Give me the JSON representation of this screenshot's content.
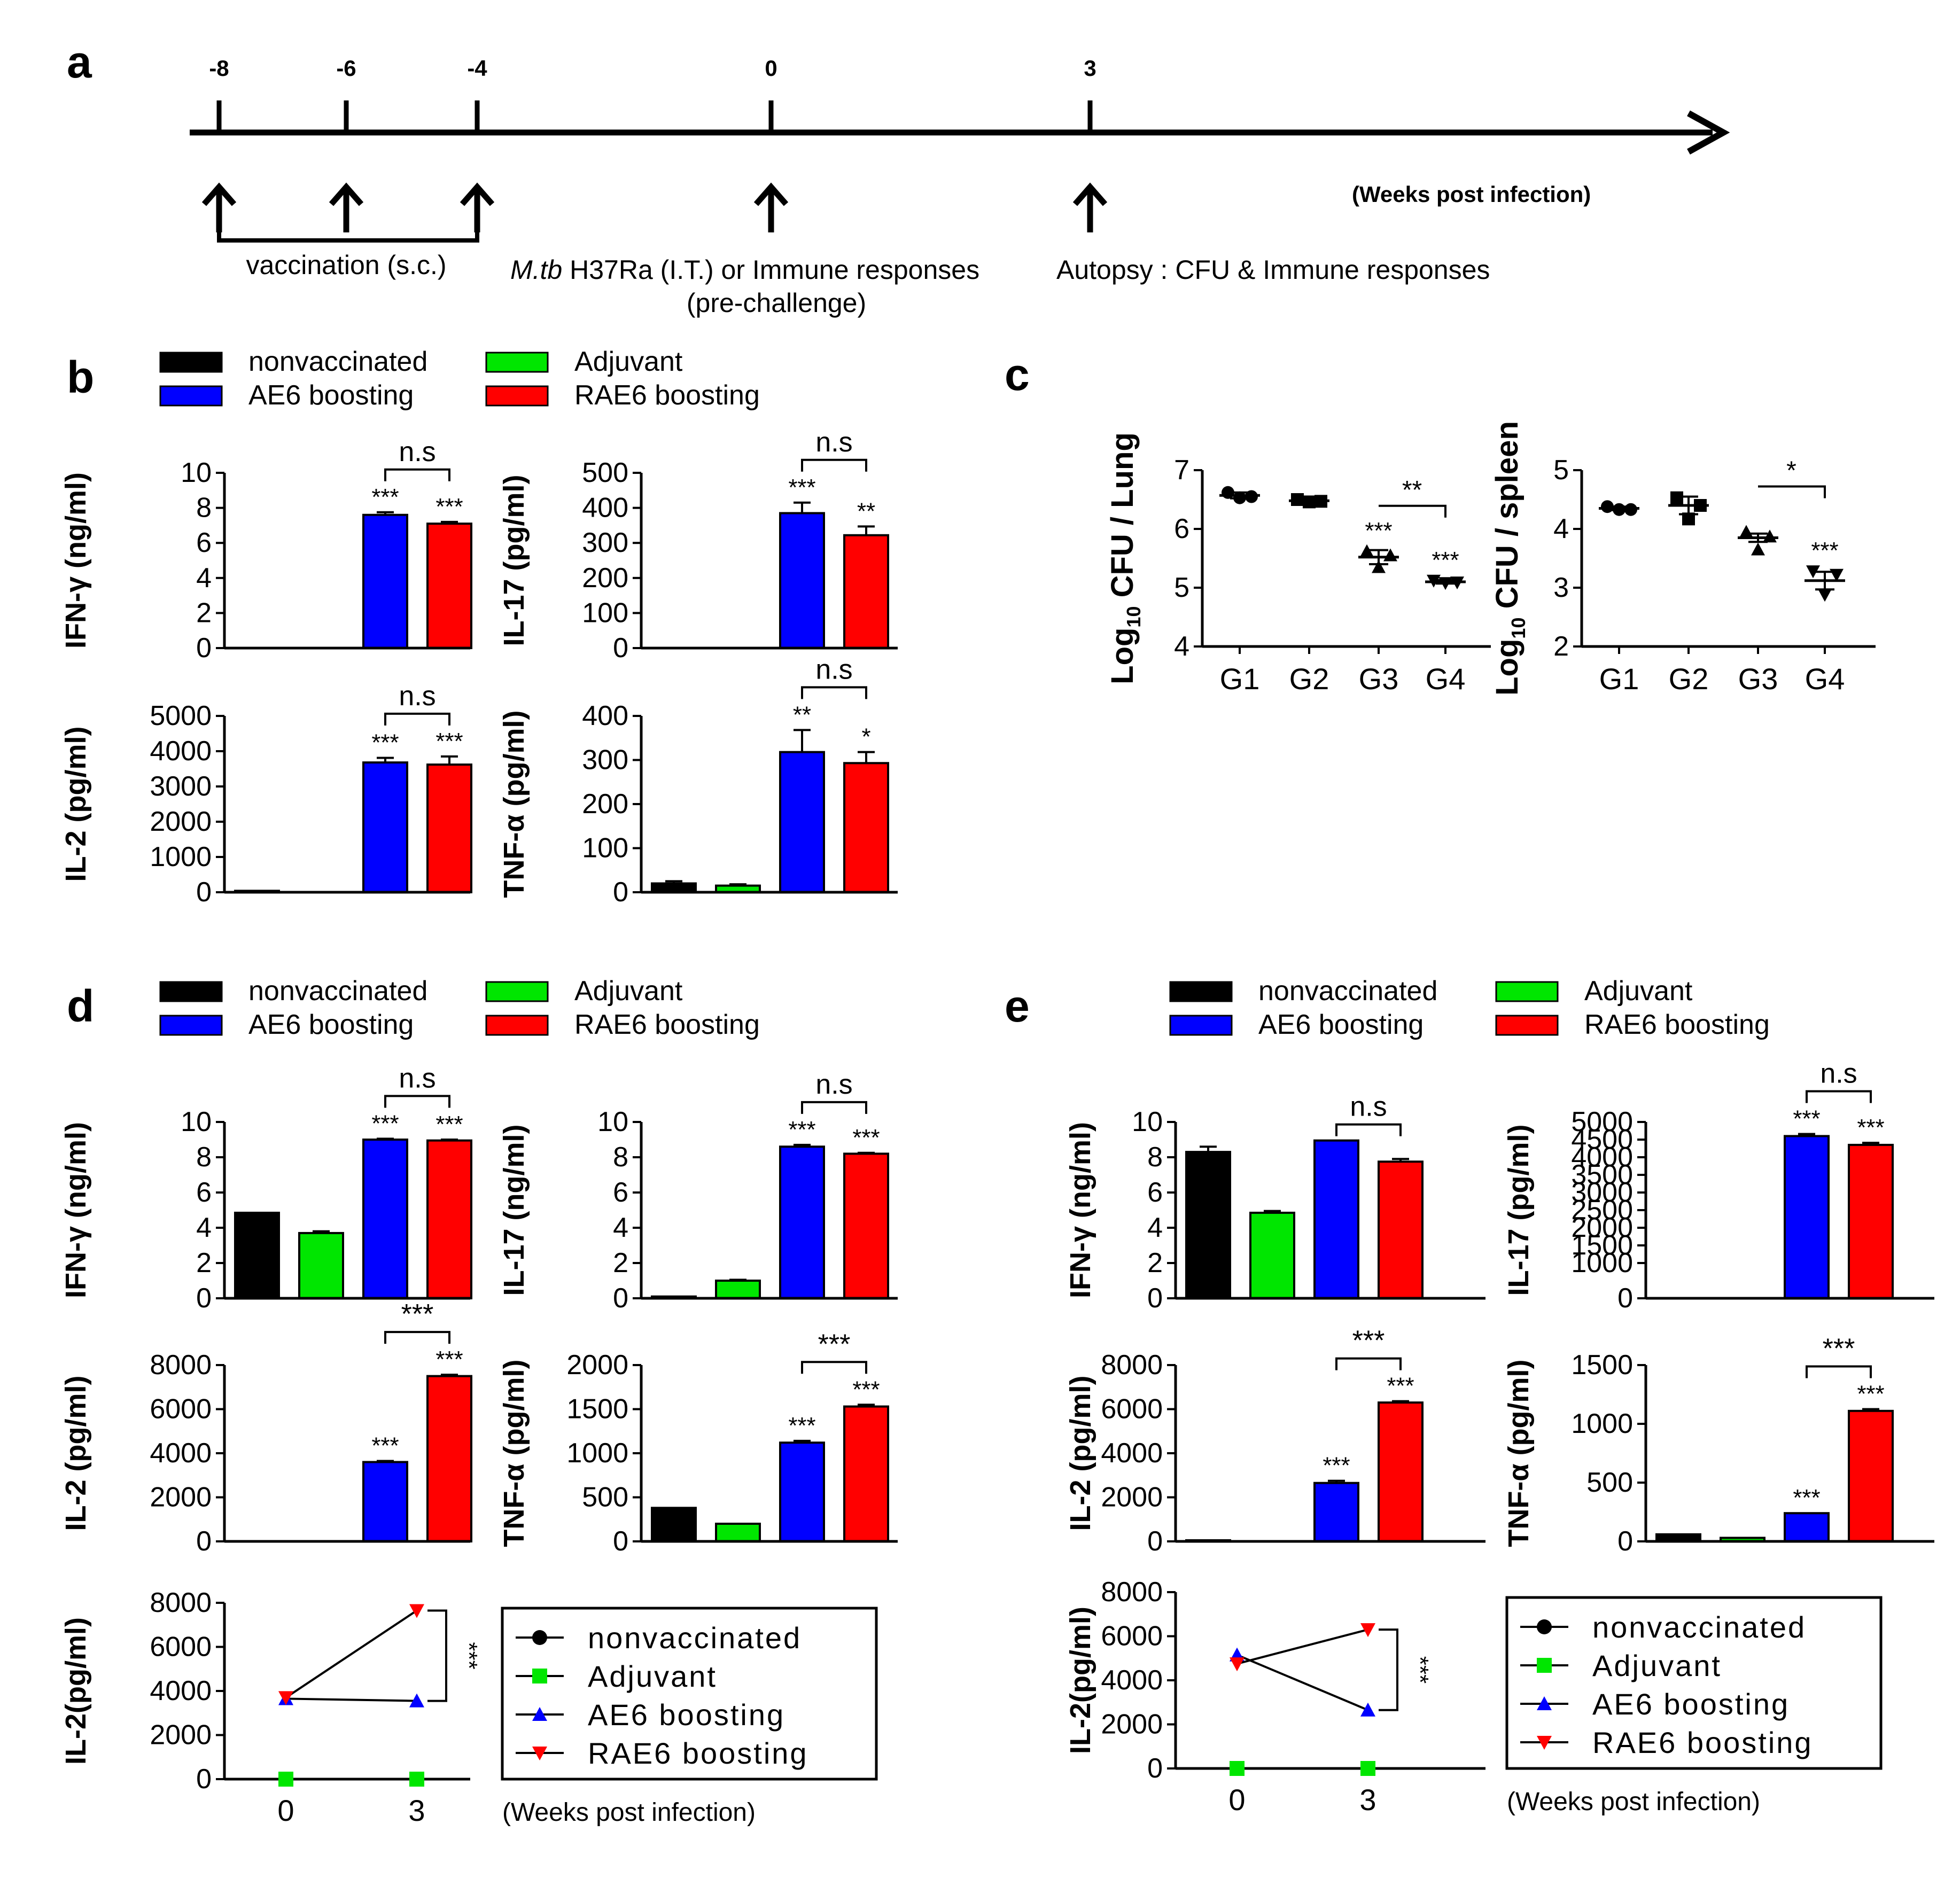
{
  "colors": {
    "nonvaccinated": "#000000",
    "adjuvant": "#00e600",
    "ae6": "#0000ff",
    "rae6": "#ff0000"
  },
  "legend_items": [
    "nonvaccinated",
    "Adjuvant",
    "AE6 boosting",
    "RAE6 boosting"
  ],
  "panel_a": {
    "label": "a",
    "ticks": [
      "-8",
      "-6",
      "-4",
      "0",
      "3"
    ],
    "unit": "(Weeks post infection)",
    "vaccination": "vaccination (s.c.)",
    "challenge_italic": "M.tb",
    "challenge_rest": " H37Ra (I.T.) or Immune responses",
    "pre_challenge": "(pre-challenge)",
    "autopsy": "Autopsy : CFU & Immune responses"
  },
  "chart_data": [
    {
      "id": "b1",
      "panel": "b",
      "type": "bar",
      "ylabel": "IFN-γ (ng/ml)",
      "categories": [
        "nonvaccinated",
        "Adjuvant",
        "AE6 boosting",
        "RAE6 boosting"
      ],
      "values": [
        0,
        0,
        7.6,
        7.1
      ],
      "errors": [
        0,
        0,
        0.15,
        0.1
      ],
      "ylim": [
        0,
        10
      ],
      "yticks": [
        "0",
        "2",
        "4",
        "6",
        "8",
        "10"
      ],
      "stars": [
        "",
        "",
        "***",
        "***"
      ],
      "bracket": {
        "from": 2,
        "to": 3,
        "label": "n.s"
      }
    },
    {
      "id": "b2",
      "panel": "b",
      "type": "bar",
      "ylabel": "IL-17 (pg/ml)",
      "categories": [
        "nonvaccinated",
        "Adjuvant",
        "AE6 boosting",
        "RAE6 boosting"
      ],
      "values": [
        0,
        0,
        385,
        322
      ],
      "errors": [
        0,
        0,
        30,
        25
      ],
      "ylim": [
        0,
        500
      ],
      "yticks": [
        "0",
        "100",
        "200",
        "300",
        "400",
        "500"
      ],
      "stars": [
        "",
        "",
        "***",
        "**"
      ],
      "bracket": {
        "from": 2,
        "to": 3,
        "label": "n.s"
      }
    },
    {
      "id": "b3",
      "panel": "b",
      "type": "bar",
      "ylabel": "IL-2 (pg/ml)",
      "categories": [
        "nonvaccinated",
        "Adjuvant",
        "AE6 boosting",
        "RAE6 boosting"
      ],
      "values": [
        40,
        0,
        3680,
        3620
      ],
      "errors": [
        0,
        0,
        130,
        230
      ],
      "ylim": [
        0,
        5000
      ],
      "yticks": [
        "0",
        "1000",
        "2000",
        "3000",
        "4000",
        "5000"
      ],
      "stars": [
        "",
        "",
        "***",
        "***"
      ],
      "bracket": {
        "from": 2,
        "to": 3,
        "label": "n.s"
      }
    },
    {
      "id": "b4",
      "panel": "b",
      "type": "bar",
      "ylabel": "TNF-α (pg/ml)",
      "categories": [
        "nonvaccinated",
        "Adjuvant",
        "AE6 boosting",
        "RAE6 boosting"
      ],
      "values": [
        20,
        15,
        318,
        293
      ],
      "errors": [
        5,
        3,
        50,
        25
      ],
      "ylim": [
        0,
        400
      ],
      "yticks": [
        "0",
        "100",
        "200",
        "300",
        "400"
      ],
      "stars": [
        "",
        "",
        "**",
        "*"
      ],
      "bracket": {
        "from": 2,
        "to": 3,
        "label": "n.s"
      }
    },
    {
      "id": "c1",
      "panel": "c",
      "type": "scatter",
      "ylabel": "Log10 CFU / Lung",
      "categories": [
        "G1",
        "G2",
        "G3",
        "G4"
      ],
      "means": [
        6.57,
        6.48,
        5.52,
        5.1
      ],
      "sem": [
        0.05,
        0.03,
        0.12,
        0.03
      ],
      "points": [
        [
          6.62,
          6.55,
          6.53
        ],
        [
          6.5,
          6.47,
          6.46
        ],
        [
          5.62,
          5.55,
          5.35
        ],
        [
          5.12,
          5.09,
          5.08
        ]
      ],
      "markers": [
        "circle",
        "square",
        "triangle-up",
        "triangle-down"
      ],
      "ylim": [
        4,
        7
      ],
      "yticks": [
        "4",
        "5",
        "6",
        "7"
      ],
      "stars": [
        "",
        "",
        "***",
        "***"
      ],
      "bracket": {
        "from": 2,
        "to": 3,
        "label": "**"
      }
    },
    {
      "id": "c2",
      "panel": "c",
      "type": "scatter",
      "ylabel": "Log10 CFU / spleen",
      "categories": [
        "G1",
        "G2",
        "G3",
        "G4"
      ],
      "means": [
        4.35,
        4.4,
        3.85,
        3.12
      ],
      "sem": [
        0.03,
        0.15,
        0.07,
        0.15
      ],
      "points": [
        [
          4.38,
          4.33,
          4.33
        ],
        [
          4.53,
          4.4,
          4.17
        ],
        [
          3.95,
          3.87,
          3.65
        ],
        [
          3.28,
          3.22,
          2.88
        ]
      ],
      "markers": [
        "circle",
        "square",
        "triangle-up",
        "triangle-down"
      ],
      "ylim": [
        2,
        5
      ],
      "yticks": [
        "2",
        "3",
        "4",
        "5"
      ],
      "stars": [
        "",
        "",
        "",
        "***"
      ],
      "bracket": {
        "from": 2,
        "to": 3,
        "label": "*"
      }
    },
    {
      "id": "d1",
      "panel": "d",
      "type": "bar",
      "ylabel": "IFN-γ (ng/ml)",
      "categories": [
        "nonvaccinated",
        "Adjuvant",
        "AE6 boosting",
        "RAE6 boosting"
      ],
      "values": [
        4.85,
        3.7,
        9.0,
        8.95
      ],
      "errors": [
        0,
        0.1,
        0.05,
        0.05
      ],
      "ylim": [
        0,
        10
      ],
      "yticks": [
        "0",
        "2",
        "4",
        "6",
        "8",
        "10"
      ],
      "stars": [
        "",
        "",
        "***",
        "***"
      ],
      "bracket": {
        "from": 2,
        "to": 3,
        "label": "n.s"
      }
    },
    {
      "id": "d2",
      "panel": "d",
      "type": "bar",
      "ylabel": "IL-17 (ng/ml)",
      "categories": [
        "nonvaccinated",
        "Adjuvant",
        "AE6 boosting",
        "RAE6 boosting"
      ],
      "values": [
        0.1,
        1.0,
        8.6,
        8.2
      ],
      "errors": [
        0,
        0.05,
        0.1,
        0.05
      ],
      "ylim": [
        0,
        10
      ],
      "yticks": [
        "0",
        "2",
        "4",
        "6",
        "8",
        "10"
      ],
      "stars": [
        "",
        "",
        "***",
        "***"
      ],
      "bracket": {
        "from": 2,
        "to": 3,
        "label": "n.s"
      }
    },
    {
      "id": "d3",
      "panel": "d",
      "type": "bar",
      "ylabel": "IL-2 (pg/ml)",
      "categories": [
        "nonvaccinated",
        "Adjuvant",
        "AE6 boosting",
        "RAE6 boosting"
      ],
      "values": [
        0,
        0,
        3600,
        7500
      ],
      "errors": [
        0,
        0,
        50,
        60
      ],
      "ylim": [
        0,
        8000
      ],
      "yticks": [
        "0",
        "2000",
        "4000",
        "6000",
        "8000"
      ],
      "stars": [
        "",
        "",
        "***",
        "***"
      ],
      "bracket": {
        "from": 2,
        "to": 3,
        "label": "***"
      }
    },
    {
      "id": "d4",
      "panel": "d",
      "type": "bar",
      "ylabel": "TNF-α (pg/ml)",
      "categories": [
        "nonvaccinated",
        "Adjuvant",
        "AE6 boosting",
        "RAE6 boosting"
      ],
      "values": [
        380,
        200,
        1120,
        1530
      ],
      "errors": [
        0,
        0,
        20,
        20
      ],
      "ylim": [
        0,
        2000
      ],
      "yticks": [
        "0",
        "500",
        "1000",
        "1500",
        "2000"
      ],
      "stars": [
        "",
        "",
        "***",
        "***"
      ],
      "bracket": {
        "from": 2,
        "to": 3,
        "label": "***"
      }
    },
    {
      "id": "d5",
      "panel": "d",
      "type": "line",
      "ylabel": "IL-2(pg/ml)",
      "x": [
        "0",
        "3"
      ],
      "series": [
        {
          "name": "nonvaccinated",
          "values": [
            0,
            0
          ]
        },
        {
          "name": "Adjuvant",
          "values": [
            0,
            0
          ]
        },
        {
          "name": "AE6 boosting",
          "values": [
            3650,
            3550
          ]
        },
        {
          "name": "RAE6 boosting",
          "values": [
            3700,
            7650
          ]
        }
      ],
      "ylim": [
        0,
        8000
      ],
      "yticks": [
        "0",
        "2000",
        "4000",
        "6000",
        "8000"
      ],
      "annotation": "***",
      "xunit": "(Weeks post infection)"
    },
    {
      "id": "e1",
      "panel": "e",
      "type": "bar",
      "ylabel": "IFN-γ (ng/ml)",
      "categories": [
        "nonvaccinated",
        "Adjuvant",
        "AE6 boosting",
        "RAE6 boosting"
      ],
      "values": [
        8.3,
        4.85,
        8.95,
        7.75
      ],
      "errors": [
        0.3,
        0.1,
        0,
        0.15
      ],
      "ylim": [
        0,
        10
      ],
      "yticks": [
        "0",
        "2",
        "4",
        "6",
        "8",
        "10"
      ],
      "stars": [
        "",
        "",
        "",
        ""
      ],
      "bracket": {
        "from": 2,
        "to": 3,
        "label": "n.s"
      }
    },
    {
      "id": "e2",
      "panel": "e",
      "type": "bar",
      "ylabel": "IL-17 (pg/ml)",
      "categories": [
        "nonvaccinated",
        "Adjuvant",
        "AE6 boosting",
        "RAE6 boosting"
      ],
      "values": [
        0,
        0,
        4600,
        4350
      ],
      "errors": [
        0,
        0,
        60,
        60
      ],
      "ylim": [
        0,
        5000
      ],
      "yticks": [
        "0",
        "1000",
        "1500",
        "2000",
        "2500",
        "3000",
        "3500",
        "4000",
        "4500",
        "5000"
      ],
      "stars": [
        "",
        "",
        "***",
        "***"
      ],
      "bracket": {
        "from": 2,
        "to": 3,
        "label": "n.s"
      }
    },
    {
      "id": "e3",
      "panel": "e",
      "type": "bar",
      "ylabel": "IL-2 (pg/ml)",
      "categories": [
        "nonvaccinated",
        "Adjuvant",
        "AE6 boosting",
        "RAE6 boosting"
      ],
      "values": [
        50,
        0,
        2650,
        6300
      ],
      "errors": [
        0,
        0,
        100,
        60
      ],
      "ylim": [
        0,
        8000
      ],
      "yticks": [
        "0",
        "2000",
        "4000",
        "6000",
        "8000"
      ],
      "stars": [
        "",
        "",
        "***",
        "***"
      ],
      "bracket": {
        "from": 2,
        "to": 3,
        "label": "***"
      }
    },
    {
      "id": "e4",
      "panel": "e",
      "type": "bar",
      "ylabel": "TNF-α (pg/ml)",
      "categories": [
        "nonvaccinated",
        "Adjuvant",
        "AE6 boosting",
        "RAE6 boosting"
      ],
      "values": [
        60,
        30,
        240,
        1110
      ],
      "errors": [
        0,
        0,
        0,
        15
      ],
      "ylim": [
        0,
        1500
      ],
      "yticks": [
        "0",
        "500",
        "1000",
        "1500"
      ],
      "stars": [
        "",
        "",
        "***",
        "***"
      ],
      "bracket": {
        "from": 2,
        "to": 3,
        "label": "***"
      }
    },
    {
      "id": "e5",
      "panel": "e",
      "type": "line",
      "ylabel": "IL-2(pg/ml)",
      "x": [
        "0",
        "3"
      ],
      "series": [
        {
          "name": "nonvaccinated",
          "values": [
            0,
            0
          ]
        },
        {
          "name": "Adjuvant",
          "values": [
            0,
            0
          ]
        },
        {
          "name": "AE6 boosting",
          "values": [
            5150,
            2650
          ]
        },
        {
          "name": "RAE6 boosting",
          "values": [
            4750,
            6300
          ]
        }
      ],
      "ylim": [
        0,
        8000
      ],
      "yticks": [
        "0",
        "2000",
        "4000",
        "6000",
        "8000"
      ],
      "annotation": "***",
      "xunit": "(Weeks post infection)"
    }
  ]
}
